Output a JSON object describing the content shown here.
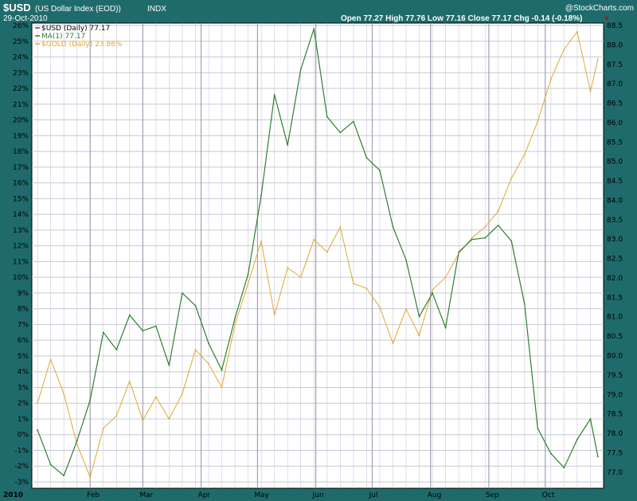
{
  "header": {
    "symbol": "$USD",
    "name": "(US Dollar Index (EOD))",
    "exchange": "INDX",
    "date": "29-Oct-2010",
    "watermark": "@StockCharts.com",
    "quote": "Open 77.27  High 77.76  Low 77.16  Close 77.17  Chg -0.14 (-0.18%)",
    "down_marker": "▼"
  },
  "colors": {
    "frame": "#1f6b6b",
    "plot_bg": "#ffffff",
    "grid": "#c8c8d8",
    "grid_month": "#a0a0b4",
    "usd": "#2f7f2f",
    "gold": "#e0a830",
    "down": "#cc0000"
  },
  "chart_data": {
    "type": "line",
    "legend": {
      "placement": "top-left",
      "entries": [
        "$USD (Daily) 77.17",
        "MA(1) 77.17",
        "$GOLD (Daily) 23.86%"
      ]
    },
    "x_axis": {
      "labels": [
        "2010",
        "Feb",
        "Mar",
        "Apr",
        "May",
        "Jun",
        "Jul",
        "Aug",
        "Sep",
        "Oct"
      ]
    },
    "left_axis": {
      "unit": "%",
      "range": [
        -3,
        26
      ],
      "ticks": [
        26,
        25,
        24,
        23,
        22,
        21,
        20,
        19,
        18,
        17,
        16,
        15,
        14,
        13,
        12,
        11,
        10,
        9,
        8,
        7,
        6,
        5,
        4,
        3,
        2,
        1,
        0,
        -1,
        -2,
        -3
      ],
      "tick_labels": [
        "26%",
        "25%",
        "24%",
        "23%",
        "22%",
        "21%",
        "20%",
        "19%",
        "18%",
        "17%",
        "16%",
        "15%",
        "14%",
        "13%",
        "12%",
        "11%",
        "10%",
        "9%",
        "8%",
        "7%",
        "6%",
        "5%",
        "4%",
        "3%",
        "2%",
        "1%",
        "0%",
        "-1%",
        "-2%",
        "-3%"
      ]
    },
    "right_axis": {
      "range": [
        76.75,
        88.5
      ],
      "tick_labels": [
        "88.5",
        "88.0",
        "87.5",
        "87.0",
        "86.5",
        "86.0",
        "85.5",
        "85.0",
        "84.5",
        "84.0",
        "83.5",
        "83.0",
        "82.5",
        "82.0",
        "81.5",
        "81.0",
        "80.5",
        "80.0",
        "79.5",
        "79.0",
        "78.5",
        "78.0",
        "77.5",
        "77.0"
      ]
    },
    "grid": true,
    "series": [
      {
        "name": "$USD (Daily) 77.17",
        "axis": "left",
        "x": [
          "2010-01-04",
          "2010-01-11",
          "2010-01-18",
          "2010-01-25",
          "2010-02-01",
          "2010-02-08",
          "2010-02-15",
          "2010-02-22",
          "2010-03-01",
          "2010-03-08",
          "2010-03-15",
          "2010-03-22",
          "2010-03-29",
          "2010-04-05",
          "2010-04-12",
          "2010-04-19",
          "2010-04-26",
          "2010-05-03",
          "2010-05-10",
          "2010-05-17",
          "2010-05-24",
          "2010-05-31",
          "2010-06-07",
          "2010-06-14",
          "2010-06-21",
          "2010-06-28",
          "2010-07-05",
          "2010-07-12",
          "2010-07-19",
          "2010-07-26",
          "2010-08-02",
          "2010-08-09",
          "2010-08-16",
          "2010-08-23",
          "2010-08-30",
          "2010-09-06",
          "2010-09-13",
          "2010-09-20",
          "2010-09-27",
          "2010-10-04",
          "2010-10-11",
          "2010-10-18",
          "2010-10-25",
          "2010-10-29"
        ],
        "values": [
          0.3,
          -1.9,
          -2.6,
          -0.4,
          2.2,
          6.5,
          5.4,
          7.6,
          6.6,
          6.9,
          4.4,
          9.0,
          8.2,
          5.8,
          4.1,
          7.4,
          10.2,
          15.2,
          21.6,
          18.4,
          23.2,
          25.8,
          20.2,
          19.2,
          19.9,
          17.6,
          16.8,
          13.2,
          11.1,
          7.5,
          9.0,
          6.8,
          11.6,
          12.4,
          12.5,
          13.3,
          12.3,
          8.3,
          0.4,
          -1.2,
          -2.1,
          -0.3,
          1.0,
          -1.4
        ]
      },
      {
        "name": "$GOLD (Daily) 23.86%",
        "axis": "left",
        "x": [
          "2010-01-04",
          "2010-01-11",
          "2010-01-18",
          "2010-01-25",
          "2010-02-01",
          "2010-02-08",
          "2010-02-15",
          "2010-02-22",
          "2010-03-01",
          "2010-03-08",
          "2010-03-15",
          "2010-03-22",
          "2010-03-29",
          "2010-04-05",
          "2010-04-12",
          "2010-04-19",
          "2010-04-26",
          "2010-05-03",
          "2010-05-10",
          "2010-05-17",
          "2010-05-24",
          "2010-05-31",
          "2010-06-07",
          "2010-06-14",
          "2010-06-21",
          "2010-06-28",
          "2010-07-05",
          "2010-07-12",
          "2010-07-19",
          "2010-07-26",
          "2010-08-02",
          "2010-08-09",
          "2010-08-16",
          "2010-08-23",
          "2010-08-30",
          "2010-09-06",
          "2010-09-13",
          "2010-09-20",
          "2010-09-27",
          "2010-10-04",
          "2010-10-11",
          "2010-10-18",
          "2010-10-25",
          "2010-10-29"
        ],
        "values": [
          2.0,
          4.8,
          2.6,
          -0.6,
          -2.7,
          0.4,
          1.2,
          3.4,
          0.9,
          2.4,
          1.0,
          2.6,
          5.4,
          4.5,
          3.0,
          7.0,
          9.6,
          12.3,
          7.6,
          10.6,
          10.0,
          12.4,
          11.6,
          13.2,
          9.6,
          9.3,
          8.1,
          5.8,
          8.0,
          6.3,
          9.2,
          10.0,
          11.5,
          12.5,
          13.2,
          14.2,
          16.3,
          17.8,
          19.9,
          22.6,
          24.5,
          25.6,
          21.8,
          23.86
        ]
      }
    ]
  }
}
